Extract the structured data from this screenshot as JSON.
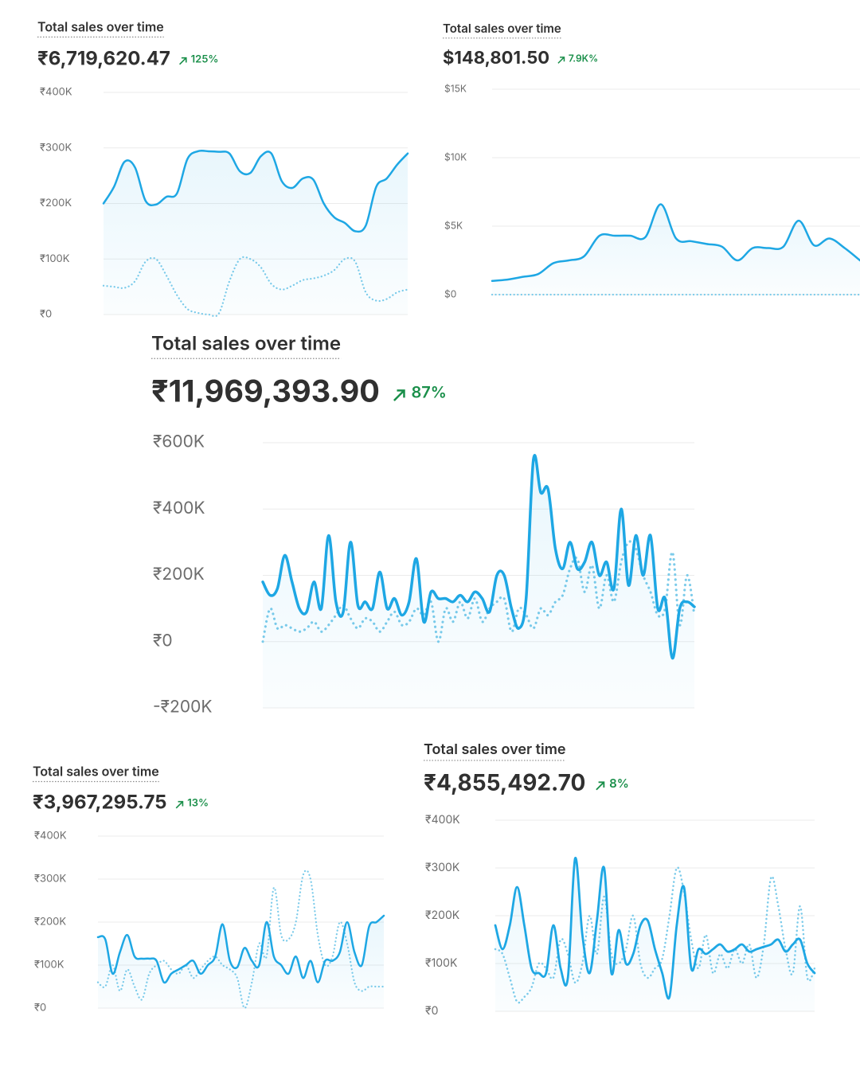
{
  "chart_data": [
    {
      "type": "line",
      "title": "Total sales over time",
      "total": "₹6,719,620.47",
      "change": "125%",
      "ylim": [
        0,
        400000
      ],
      "yticks": [
        {
          "value": 0,
          "label": "₹0"
        },
        {
          "value": 100000,
          "label": "₹100K"
        },
        {
          "value": 200000,
          "label": "₹200K"
        },
        {
          "value": 300000,
          "label": "₹300K"
        },
        {
          "value": 400000,
          "label": "₹400K"
        }
      ],
      "grid": true,
      "series": [
        {
          "color": "#1ea7e4",
          "style": "solid",
          "values": [
            200000,
            230000,
            275000,
            265000,
            205000,
            198000,
            212000,
            218000,
            280000,
            294000,
            294000,
            293000,
            290000,
            258000,
            255000,
            285000,
            290000,
            240000,
            228000,
            245000,
            243000,
            200000,
            175000,
            165000,
            150000,
            160000,
            230000,
            245000,
            270000,
            290000
          ]
        },
        {
          "color": "#7ccbea",
          "style": "dotted",
          "values": [
            52000,
            50000,
            48000,
            60000,
            95000,
            100000,
            70000,
            35000,
            10000,
            3000,
            0,
            2000,
            60000,
            100000,
            100000,
            85000,
            55000,
            45000,
            52000,
            62000,
            65000,
            70000,
            80000,
            100000,
            95000,
            40000,
            25000,
            28000,
            40000,
            45000
          ]
        }
      ]
    },
    {
      "type": "line",
      "title": "Total sales over time",
      "total": "$148,801.50",
      "change": "7.9K%",
      "ylim": [
        0,
        15000
      ],
      "yticks": [
        {
          "value": 0,
          "label": "$0"
        },
        {
          "value": 5000,
          "label": "$5K"
        },
        {
          "value": 10000,
          "label": "$10K"
        },
        {
          "value": 15000,
          "label": "$15K"
        }
      ],
      "grid": true,
      "series": [
        {
          "color": "#1ea7e4",
          "style": "solid",
          "values": [
            1000,
            1100,
            1300,
            1500,
            2300,
            2500,
            2800,
            4300,
            4300,
            4300,
            4200,
            6600,
            4100,
            3900,
            3700,
            3500,
            2500,
            3400,
            3400,
            3500,
            5400,
            3600,
            4100,
            3400,
            2500
          ]
        },
        {
          "color": "#7ccbea",
          "style": "dotted",
          "values": [
            0,
            0,
            0,
            0,
            0,
            0,
            0,
            0,
            0,
            0,
            0,
            0,
            0,
            0,
            0,
            0,
            0,
            0,
            0,
            0,
            0,
            0,
            0,
            0,
            0
          ]
        }
      ]
    },
    {
      "type": "line",
      "title": "Total sales over time",
      "total": "₹11,969,393.90",
      "change": "87%",
      "ylim": [
        -200000,
        600000
      ],
      "yticks": [
        {
          "value": -200000,
          "label": "-₹200K"
        },
        {
          "value": 0,
          "label": "₹0"
        },
        {
          "value": 200000,
          "label": "₹200K"
        },
        {
          "value": 400000,
          "label": "₹400K"
        },
        {
          "value": 600000,
          "label": "₹600K"
        }
      ],
      "grid": true,
      "series": [
        {
          "color": "#1ea7e4",
          "style": "solid",
          "values": [
            180000,
            140000,
            160000,
            260000,
            180000,
            100000,
            90000,
            180000,
            100000,
            320000,
            120000,
            90000,
            300000,
            110000,
            120000,
            100000,
            210000,
            100000,
            130000,
            80000,
            120000,
            250000,
            60000,
            150000,
            130000,
            130000,
            120000,
            140000,
            120000,
            150000,
            130000,
            90000,
            200000,
            200000,
            100000,
            40000,
            130000,
            550000,
            450000,
            460000,
            280000,
            220000,
            300000,
            220000,
            240000,
            300000,
            200000,
            240000,
            160000,
            400000,
            170000,
            320000,
            200000,
            320000,
            100000,
            130000,
            -50000,
            100000,
            120000,
            105000
          ]
        },
        {
          "color": "#7ccbea",
          "style": "dotted",
          "values": [
            0,
            100000,
            40000,
            50000,
            40000,
            30000,
            40000,
            60000,
            30000,
            50000,
            80000,
            110000,
            70000,
            40000,
            70000,
            60000,
            30000,
            60000,
            90000,
            50000,
            60000,
            100000,
            80000,
            120000,
            0,
            100000,
            60000,
            120000,
            70000,
            130000,
            60000,
            100000,
            120000,
            130000,
            30000,
            100000,
            80000,
            40000,
            100000,
            80000,
            120000,
            140000,
            220000,
            250000,
            150000,
            230000,
            100000,
            200000,
            120000,
            240000,
            300000,
            280000,
            200000,
            150000,
            80000,
            100000,
            270000,
            50000,
            200000,
            80000
          ]
        }
      ]
    },
    {
      "type": "line",
      "title": "Total sales over time",
      "total": "₹3,967,295.75",
      "change": "13%",
      "ylim": [
        0,
        400000
      ],
      "yticks": [
        {
          "value": 0,
          "label": "₹0"
        },
        {
          "value": 100000,
          "label": "₹100K"
        },
        {
          "value": 200000,
          "label": "₹200K"
        },
        {
          "value": 300000,
          "label": "₹300K"
        },
        {
          "value": 400000,
          "label": "₹400K"
        }
      ],
      "grid": true,
      "series": [
        {
          "color": "#1ea7e4",
          "style": "solid",
          "values": [
            165000,
            160000,
            80000,
            130000,
            170000,
            120000,
            115000,
            115000,
            110000,
            60000,
            80000,
            90000,
            100000,
            110000,
            80000,
            100000,
            120000,
            195000,
            110000,
            95000,
            140000,
            110000,
            100000,
            200000,
            120000,
            100000,
            80000,
            120000,
            70000,
            110000,
            60000,
            110000,
            110000,
            130000,
            200000,
            130000,
            100000,
            190000,
            200000,
            215000
          ]
        },
        {
          "color": "#7ccbea",
          "style": "dotted",
          "values": [
            60000,
            50000,
            100000,
            40000,
            90000,
            50000,
            20000,
            80000,
            100000,
            110000,
            90000,
            80000,
            100000,
            70000,
            90000,
            110000,
            120000,
            100000,
            90000,
            70000,
            0,
            60000,
            150000,
            120000,
            280000,
            170000,
            160000,
            200000,
            310000,
            300000,
            170000,
            100000,
            120000,
            200000,
            150000,
            60000,
            40000,
            50000,
            50000,
            50000
          ]
        }
      ]
    },
    {
      "type": "line",
      "title": "Total sales over time",
      "total": "₹4,855,492.70",
      "change": "8%",
      "ylim": [
        0,
        400000
      ],
      "yticks": [
        {
          "value": 0,
          "label": "₹0"
        },
        {
          "value": 100000,
          "label": "₹100K"
        },
        {
          "value": 200000,
          "label": "₹200K"
        },
        {
          "value": 300000,
          "label": "₹300K"
        },
        {
          "value": 400000,
          "label": "₹400K"
        }
      ],
      "grid": true,
      "series": [
        {
          "color": "#1ea7e4",
          "style": "solid",
          "values": [
            180000,
            130000,
            180000,
            260000,
            180000,
            90000,
            80000,
            80000,
            180000,
            90000,
            70000,
            320000,
            160000,
            80000,
            190000,
            300000,
            80000,
            170000,
            100000,
            120000,
            180000,
            190000,
            130000,
            80000,
            30000,
            180000,
            260000,
            90000,
            130000,
            120000,
            130000,
            140000,
            125000,
            130000,
            140000,
            125000,
            130000,
            135000,
            140000,
            150000,
            125000,
            140000,
            150000,
            100000,
            80000
          ]
        },
        {
          "color": "#7ccbea",
          "style": "dotted",
          "values": [
            130000,
            120000,
            70000,
            20000,
            30000,
            50000,
            100000,
            90000,
            70000,
            150000,
            120000,
            60000,
            100000,
            200000,
            120000,
            240000,
            120000,
            100000,
            130000,
            200000,
            100000,
            70000,
            90000,
            110000,
            200000,
            300000,
            250000,
            150000,
            90000,
            160000,
            80000,
            120000,
            90000,
            130000,
            100000,
            140000,
            70000,
            140000,
            280000,
            220000,
            130000,
            80000,
            220000,
            70000,
            90000
          ]
        }
      ]
    }
  ]
}
